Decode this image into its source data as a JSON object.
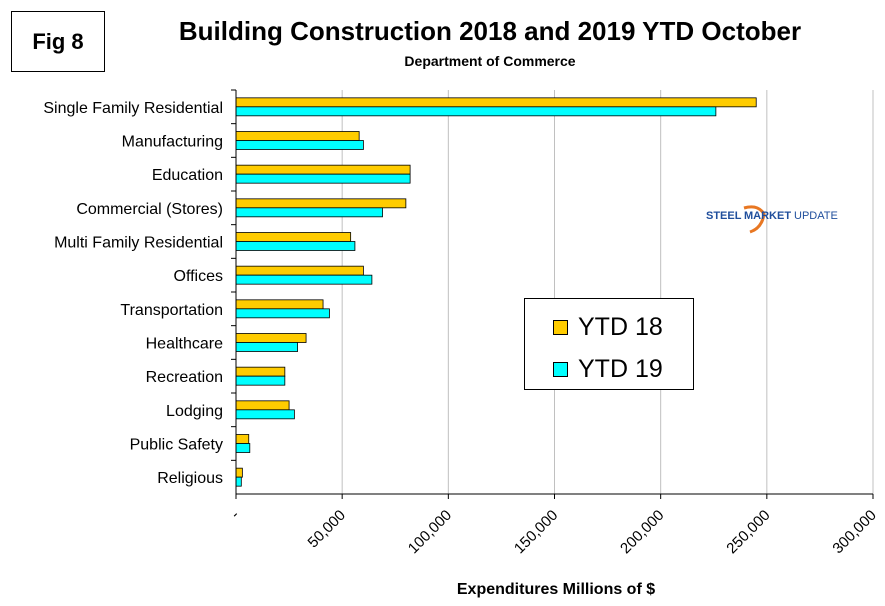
{
  "figure_label": "Fig 8",
  "logo": {
    "steel": "STEEL",
    "market": "MARKET",
    "update": "UPDATE"
  },
  "colors": {
    "ytd18": "#FFCC00",
    "ytd19": "#00FFFF",
    "gridline": "#C0C0C0"
  },
  "chart_data": {
    "type": "bar",
    "orientation": "horizontal",
    "title": "Building Construction 2018 and 2019 YTD October",
    "subtitle": "Department of Commerce",
    "xlabel": "Expenditures Millions of $",
    "ylabel": "",
    "xlim": [
      0,
      300000
    ],
    "x_ticks": [
      0,
      50000,
      100000,
      150000,
      200000,
      250000,
      300000
    ],
    "x_tick_labels": [
      "-",
      "50,000",
      "100,000",
      "150,000",
      "200,000",
      "250,000",
      "300,000"
    ],
    "grid": true,
    "legend_position": "center-right",
    "categories": [
      "Single Family Residential",
      "Manufacturing",
      "Education",
      "Commercial (Stores)",
      "Multi Family Residential",
      "Offices",
      "Transportation",
      "Healthcare",
      "Recreation",
      "Lodging",
      "Public Safety",
      "Religious"
    ],
    "series": [
      {
        "name": "YTD 18",
        "values": [
          245000,
          58000,
          82000,
          80000,
          54000,
          60000,
          41000,
          33000,
          23000,
          25000,
          6000,
          3000
        ]
      },
      {
        "name": "YTD 19",
        "values": [
          226000,
          60000,
          82000,
          69000,
          56000,
          64000,
          44000,
          29000,
          23000,
          27500,
          6500,
          2500
        ]
      }
    ]
  }
}
